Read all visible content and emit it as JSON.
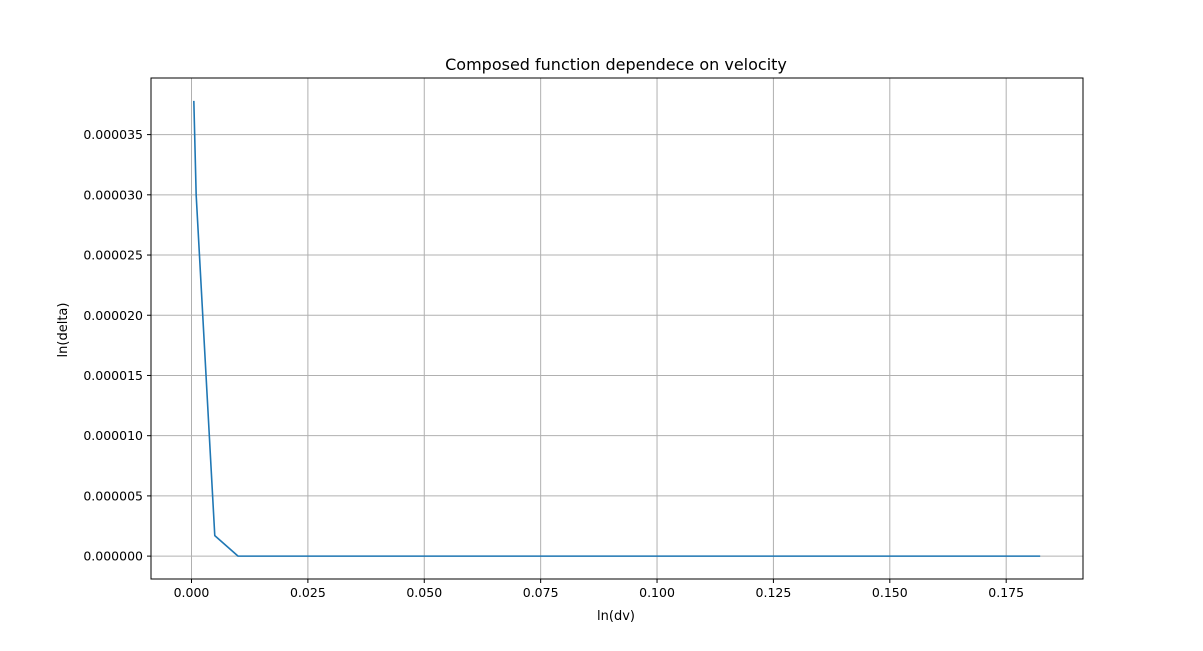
{
  "chart_data": {
    "type": "line",
    "title": "Composed function dependece on velocity",
    "xlabel": "ln(dv)",
    "ylabel": "ln(delta)",
    "xlim": [
      -0.0087,
      0.1915
    ],
    "ylim": [
      -1.9e-06,
      3.97e-05
    ],
    "x_ticks": [
      0.0,
      0.025,
      0.05,
      0.075,
      0.1,
      0.125,
      0.15,
      0.175
    ],
    "x_tick_labels": [
      "0.000",
      "0.025",
      "0.050",
      "0.075",
      "0.100",
      "0.125",
      "0.150",
      "0.175"
    ],
    "y_ticks": [
      0.0,
      5e-06,
      1e-05,
      1.5e-05,
      2e-05,
      2.5e-05,
      3e-05,
      3.5e-05
    ],
    "y_tick_labels": [
      "0.000000",
      "0.000005",
      "0.000010",
      "0.000015",
      "0.000020",
      "0.000025",
      "0.000030",
      "0.000035"
    ],
    "grid": true,
    "series": [
      {
        "color": "#1f77b4",
        "x": [
          0.0005,
          0.001,
          0.005,
          0.01,
          0.05,
          0.1,
          0.15,
          0.1823
        ],
        "y": [
          3.78e-05,
          3e-05,
          1.7e-06,
          0.0,
          0.0,
          0.0,
          0.0,
          0.0
        ]
      }
    ]
  }
}
